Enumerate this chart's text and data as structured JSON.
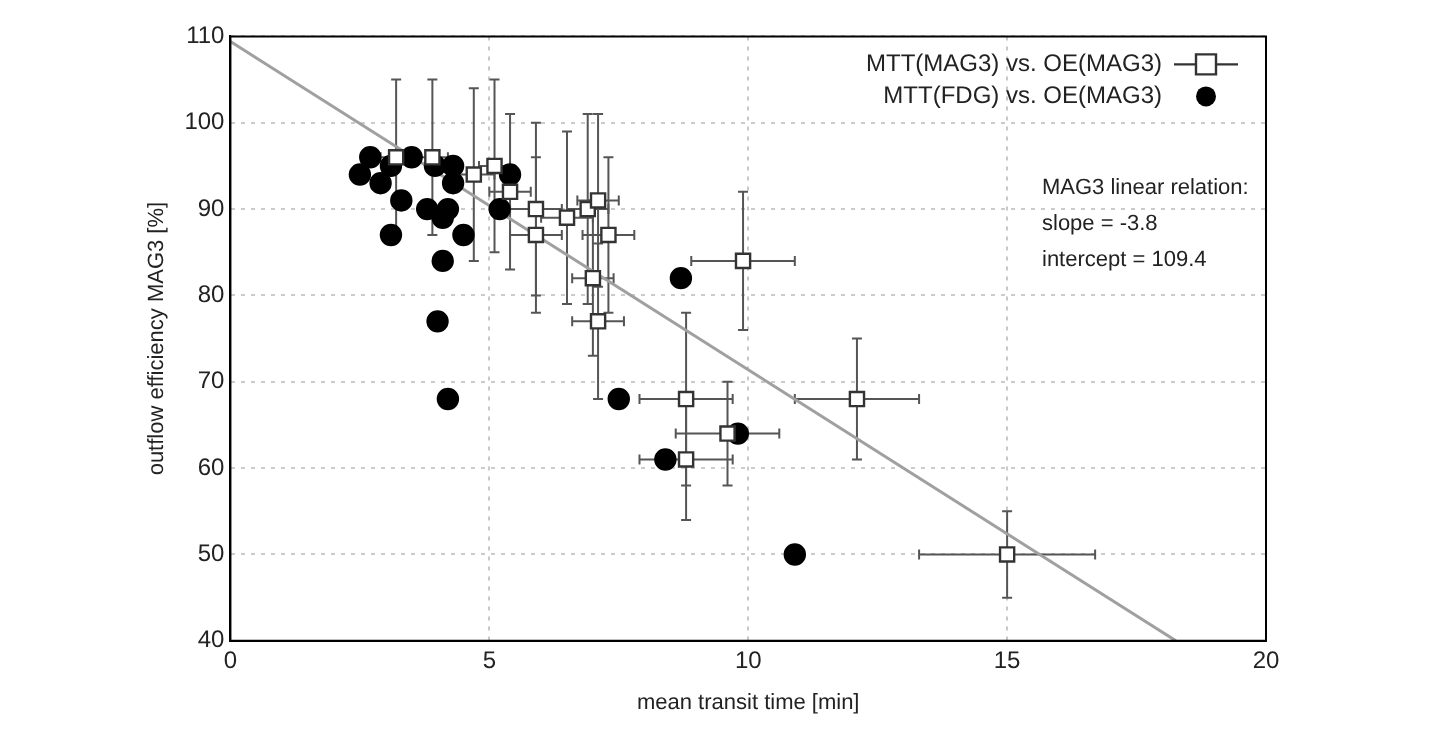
{
  "chart_data": {
    "type": "scatter",
    "xlabel": "mean transit time [min]",
    "ylabel": "outflow efficiency MAG3 [%]",
    "xlim": [
      0,
      20
    ],
    "xticks": [
      0,
      5,
      10,
      15,
      20
    ],
    "ylim": [
      40,
      110
    ],
    "yticks": [
      40,
      50,
      60,
      70,
      80,
      90,
      100,
      110
    ],
    "grid": true,
    "legend": "top right",
    "annotations": [
      "MAG3 linear relation:",
      "slope = -3.8",
      "intercept = 109.4"
    ],
    "series": [
      {
        "name": "MTT(MAG3) vs. OE(MAG3)",
        "color": "#333333",
        "marker": "square",
        "x": [
          3.2,
          3.9,
          4.7,
          5.1,
          5.4,
          5.9,
          5.9,
          6.5,
          6.9,
          7.1,
          7.3,
          7.0,
          7.1,
          8.8,
          8.8,
          9.6,
          9.9,
          12.1,
          15.0
        ],
        "values": [
          96,
          96,
          94,
          95,
          92,
          90,
          87,
          89,
          90,
          91,
          87,
          82,
          77,
          68,
          61,
          64,
          84,
          68,
          50
        ],
        "errors": [
          9,
          9,
          10,
          10,
          9,
          10,
          9,
          10,
          11,
          10,
          9,
          9,
          9,
          10,
          7,
          6,
          8,
          7,
          5
        ],
        "xerrors": [
          0.3,
          0.3,
          0.4,
          0.3,
          0.4,
          0.5,
          0.5,
          0.5,
          0.4,
          0.4,
          0.5,
          0.4,
          0.5,
          0.9,
          0.9,
          1.0,
          1.0,
          1.2,
          1.7
        ]
      },
      {
        "name": "MTT(FDG) vs. OE(MAG3)",
        "color": "#000000",
        "marker": "circle",
        "x": [
          2.7,
          2.5,
          2.9,
          3.1,
          3.5,
          3.3,
          3.8,
          4.3,
          4.2,
          4.1,
          3.1,
          4.5,
          4.1,
          5.2,
          5.4,
          4.0,
          4.2,
          4.3,
          3.95,
          8.7,
          7.5,
          8.4,
          9.8,
          10.9
        ],
        "values": [
          96,
          94,
          93,
          95,
          96,
          91,
          90,
          93,
          90,
          89,
          87,
          87,
          84,
          90,
          94,
          77,
          68,
          95,
          95,
          82,
          68,
          61,
          64,
          50
        ]
      },
      {
        "type": "line",
        "color": "#a0a0a0",
        "marker": "none",
        "x": [
          0,
          18.26
        ],
        "values": [
          109.4,
          40
        ]
      }
    ]
  }
}
